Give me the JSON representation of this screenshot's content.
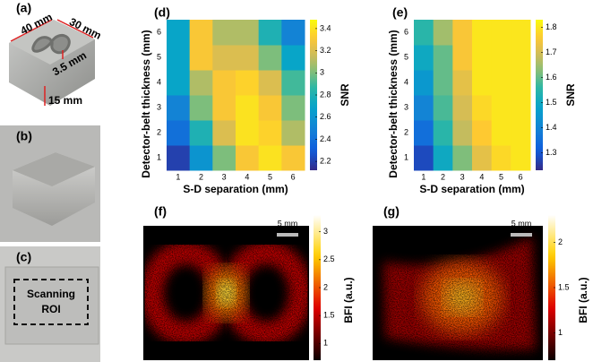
{
  "photos": [
    {
      "label": "(a)",
      "annotations": [
        "40 mm",
        "30 mm",
        "3.5 mm",
        "15 mm"
      ]
    },
    {
      "label": "(b)"
    },
    {
      "label": "(c)",
      "annotations": [
        "Scanning",
        "ROI"
      ]
    }
  ],
  "chart_data": [
    {
      "type": "heatmap",
      "label": "(d)",
      "xlabel": "S-D separation (mm)",
      "ylabel": "Detector-belt thickness (mm)",
      "colorbar_label": "SNR",
      "colormap": "parula",
      "x": [
        1,
        2,
        3,
        4,
        5,
        6
      ],
      "y": [
        1,
        2,
        3,
        4,
        5,
        6
      ],
      "z": [
        [
          2.2,
          2.6,
          3.0,
          3.3,
          3.4,
          3.3
        ],
        [
          2.4,
          2.8,
          3.2,
          3.4,
          3.35,
          3.1
        ],
        [
          2.5,
          3.0,
          3.3,
          3.4,
          3.3,
          3.0
        ],
        [
          2.7,
          3.1,
          3.3,
          3.35,
          3.2,
          2.9
        ],
        [
          2.7,
          3.3,
          3.2,
          3.2,
          3.0,
          2.7
        ],
        [
          2.7,
          3.3,
          3.1,
          3.1,
          2.8,
          2.5
        ]
      ],
      "clim": [
        2.12,
        3.48
      ],
      "cticks": [
        2.2,
        2.4,
        2.6,
        2.8,
        3,
        3.2,
        3.4
      ]
    },
    {
      "type": "heatmap",
      "label": "(e)",
      "xlabel": "S-D separation (mm)",
      "ylabel": "Detector-belt thickness (mm)",
      "colorbar_label": "SNR",
      "colormap": "parula",
      "x": [
        1,
        2,
        3,
        4,
        5,
        6
      ],
      "y": [
        1,
        2,
        3,
        4,
        5,
        6
      ],
      "z": [
        [
          1.28,
          1.5,
          1.62,
          1.72,
          1.78,
          1.8
        ],
        [
          1.35,
          1.55,
          1.68,
          1.76,
          1.8,
          1.8
        ],
        [
          1.4,
          1.58,
          1.7,
          1.78,
          1.8,
          1.8
        ],
        [
          1.45,
          1.6,
          1.72,
          1.8,
          1.8,
          1.8
        ],
        [
          1.5,
          1.6,
          1.75,
          1.8,
          1.8,
          1.8
        ],
        [
          1.55,
          1.65,
          1.75,
          1.8,
          1.8,
          1.8
        ]
      ],
      "clim": [
        1.23,
        1.83
      ],
      "cticks": [
        1.3,
        1.4,
        1.5,
        1.6,
        1.7,
        1.8
      ]
    },
    {
      "type": "image",
      "label": "(f)",
      "scale_bar": "5 mm",
      "colorbar_label": "BFI (a.u.)",
      "colormap": "hot",
      "clim": [
        0.7,
        3.3
      ],
      "cticks": [
        1,
        1.5,
        2,
        2.5,
        3
      ]
    },
    {
      "type": "image",
      "label": "(g)",
      "scale_bar": "5 mm",
      "colorbar_label": "BFI (a.u.)",
      "colormap": "hot",
      "clim": [
        0.7,
        2.3
      ],
      "cticks": [
        1,
        1.5,
        2
      ]
    }
  ]
}
